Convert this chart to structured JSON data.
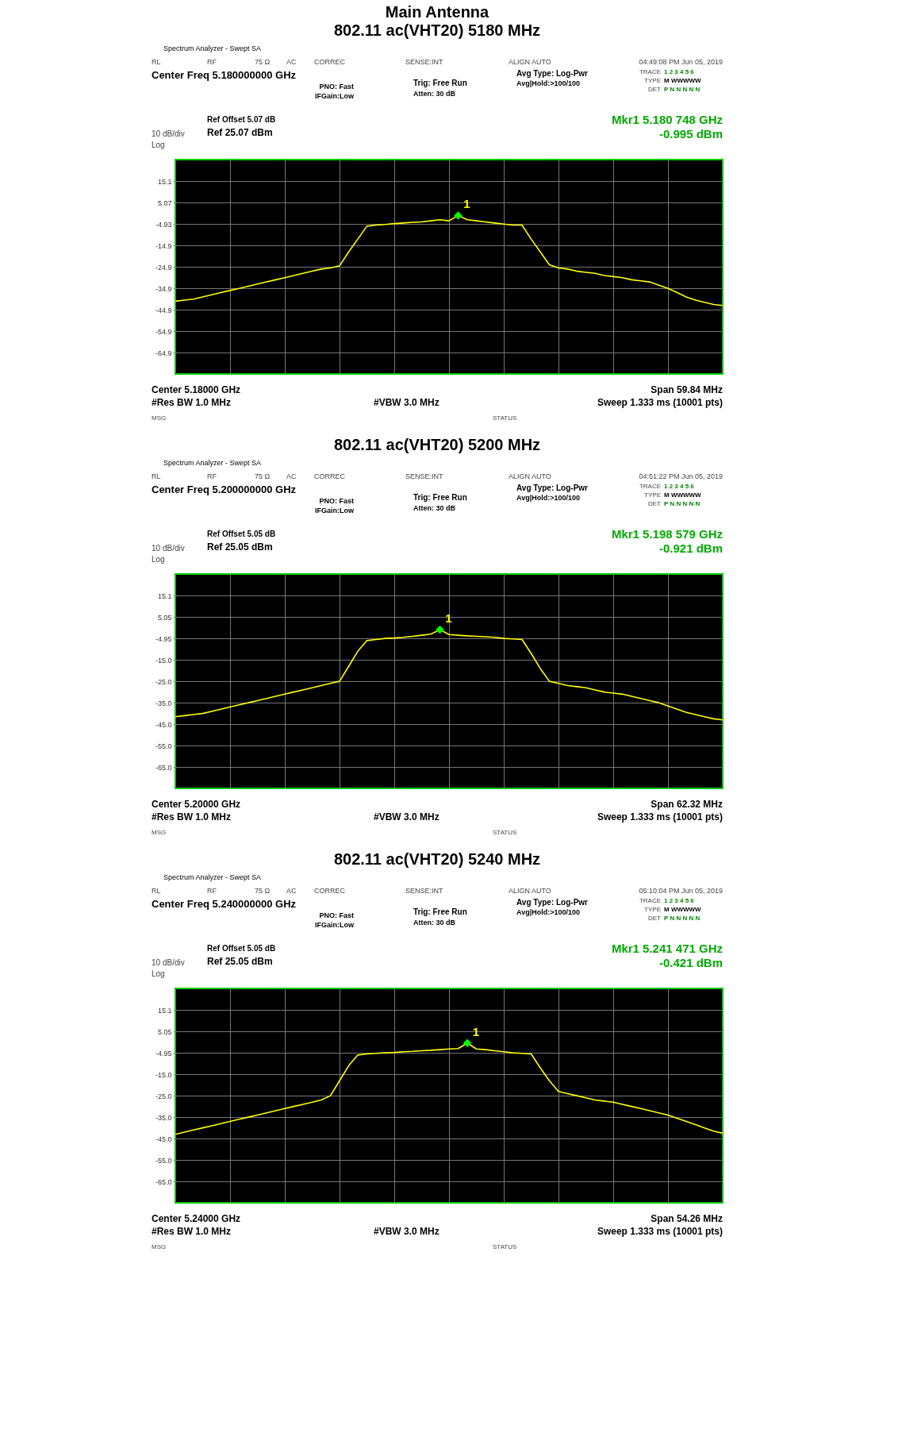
{
  "chart_data": [
    {
      "type": "line",
      "title": "Main Antenna",
      "subtitle": "802.11 ac(VHT20) 5180 MHz",
      "categories": [
        null,
        null,
        null,
        null,
        null,
        null,
        null,
        null,
        null,
        null,
        null,
        null,
        null,
        null,
        null,
        null,
        null,
        null,
        null,
        null,
        null,
        null,
        null,
        null,
        null,
        null,
        null,
        null,
        null,
        null,
        null,
        null,
        null,
        null,
        null,
        null,
        null,
        null,
        null,
        null,
        null,
        null,
        null,
        null,
        null,
        null,
        null,
        null,
        null,
        null,
        null,
        null,
        null,
        null,
        null,
        null,
        null,
        null,
        null,
        null,
        null
      ],
      "ylim": [
        -74.93,
        25.07
      ],
      "yticks": [
        {
          "value": 15.07,
          "label": "15.1"
        },
        {
          "value": 5.07,
          "label": "5.07"
        },
        {
          "value": -4.93,
          "label": "-4.93"
        },
        {
          "value": -14.93,
          "label": "-14.9"
        },
        {
          "value": -24.93,
          "label": "-24.9"
        },
        {
          "value": -34.93,
          "label": "-34.9"
        },
        {
          "value": -44.93,
          "label": "-44.9"
        },
        {
          "value": -54.93,
          "label": "-54.9"
        },
        {
          "value": -64.93,
          "label": "-64.9"
        }
      ],
      "grid": true,
      "legend": false,
      "tick_labels": "y",
      "series": [
        {
          "color": "#ffff00",
          "values": [
            -41,
            -40.5,
            -40,
            -39,
            -38,
            -37,
            -36,
            -35,
            -34,
            -33,
            -32,
            -31,
            -30,
            -29,
            -28,
            -27,
            -26,
            -25.5,
            -24.5,
            -18,
            -12,
            -6,
            -5.5,
            -5.2,
            -4.8,
            -4.5,
            -4.2,
            -4,
            -3.5,
            -3,
            -3.5,
            -0.995,
            -3,
            -3.5,
            -4,
            -4.5,
            -5,
            -5.5,
            -5.5,
            -12,
            -18,
            -24,
            -25.5,
            -26,
            -27,
            -27.5,
            -28,
            -29,
            -29.5,
            -30,
            -31,
            -31.5,
            -32,
            -33.5,
            -35,
            -37,
            -39,
            -40.5,
            -41.5,
            -42.5,
            -43
          ]
        },
        {
          "type": "scatter",
          "name": "1",
          "marker": "diamond",
          "color": "#00ff00",
          "values": [
            null,
            null,
            null,
            null,
            null,
            null,
            null,
            null,
            null,
            null,
            null,
            null,
            null,
            null,
            null,
            null,
            null,
            null,
            null,
            null,
            null,
            null,
            null,
            null,
            null,
            null,
            null,
            null,
            null,
            null,
            null,
            -0.995,
            null,
            null,
            null,
            null,
            null,
            null,
            null,
            null,
            null,
            null,
            null,
            null,
            null,
            null,
            null,
            null,
            null,
            null,
            null,
            null,
            null,
            null,
            null,
            null,
            null,
            null,
            null,
            null,
            null
          ]
        }
      ],
      "annotations": [
        "RL",
        "RF",
        "75 Ω",
        "AC",
        "CORREC",
        "SENSE:INT",
        "ALIGN AUTO",
        "04:49:08 PM Jun 05, 2019",
        "Center Freq 5.180000000 GHz",
        "PNO: Fast",
        "IFGain:Low",
        "Trig: Free Run",
        "Atten: 30 dB",
        "Avg Type: Log-Pwr",
        "Avg|Hold:>100/100",
        "TRACE",
        "1 2 3 4 5 6",
        "TYPE",
        "M WWWWW",
        "DET",
        "P N N N N N",
        "Ref Offset 5.07 dB",
        "10 dB/div",
        "Log",
        "Ref 25.07 dBm",
        "Mkr1 5.180 748 GHz",
        "-0.995 dBm",
        "Center 5.18000 GHz",
        "#Res BW 1.0 MHz",
        "#VBW 3.0 MHz",
        "Span 59.84 MHz",
        "Sweep  1.333 ms (10001 pts)",
        "MSG",
        "STATUS",
        "Spectrum Analyzer - Swept SA"
      ]
    },
    {
      "type": "line",
      "title": "802.11 ac(VHT20) 5200 MHz",
      "categories": [
        null,
        null,
        null,
        null,
        null,
        null,
        null,
        null,
        null,
        null,
        null,
        null,
        null,
        null,
        null,
        null,
        null,
        null,
        null,
        null,
        null,
        null,
        null,
        null,
        null,
        null,
        null,
        null,
        null,
        null,
        null,
        null,
        null,
        null,
        null,
        null,
        null,
        null,
        null,
        null,
        null,
        null,
        null,
        null,
        null,
        null,
        null,
        null,
        null,
        null,
        null,
        null,
        null,
        null,
        null,
        null,
        null,
        null,
        null,
        null,
        null
      ],
      "ylim": [
        -74.95,
        25.05
      ],
      "yticks": [
        {
          "value": 15.05,
          "label": "15.1"
        },
        {
          "value": 5.05,
          "label": "5.05"
        },
        {
          "value": -4.95,
          "label": "-4.95"
        },
        {
          "value": -14.95,
          "label": "-15.0"
        },
        {
          "value": -24.95,
          "label": "-25.0"
        },
        {
          "value": -34.95,
          "label": "-35.0"
        },
        {
          "value": -44.95,
          "label": "-45.0"
        },
        {
          "value": -54.95,
          "label": "-55.0"
        },
        {
          "value": -64.95,
          "label": "-65.0"
        }
      ],
      "grid": true,
      "legend": false,
      "tick_labels": "y",
      "series": [
        {
          "color": "#ffff00",
          "values": [
            -41.5,
            -41,
            -40.5,
            -40,
            -39,
            -38,
            -37,
            -36,
            -35,
            -34,
            -33,
            -32,
            -31,
            -30,
            -29,
            -28,
            -27,
            -26,
            -25,
            -18,
            -11,
            -6,
            -5.5,
            -5,
            -4.8,
            -4.5,
            -4,
            -3.5,
            -3,
            -0.921,
            -3.2,
            -3.5,
            -3.8,
            -4,
            -4.2,
            -4.5,
            -5,
            -5.2,
            -5.5,
            -12,
            -19,
            -25,
            -26,
            -27,
            -27.5,
            -28,
            -29,
            -30,
            -30.5,
            -31,
            -32,
            -33,
            -34,
            -35,
            -36.5,
            -38,
            -39.5,
            -40.5,
            -41.5,
            -42.5,
            -43
          ]
        },
        {
          "type": "scatter",
          "name": "1",
          "marker": "diamond",
          "color": "#00ff00",
          "values": [
            null,
            null,
            null,
            null,
            null,
            null,
            null,
            null,
            null,
            null,
            null,
            null,
            null,
            null,
            null,
            null,
            null,
            null,
            null,
            null,
            null,
            null,
            null,
            null,
            null,
            null,
            null,
            null,
            null,
            -0.921,
            null,
            null,
            null,
            null,
            null,
            null,
            null,
            null,
            null,
            null,
            null,
            null,
            null,
            null,
            null,
            null,
            null,
            null,
            null,
            null,
            null,
            null,
            null,
            null,
            null,
            null,
            null,
            null,
            null,
            null,
            null
          ]
        }
      ],
      "annotations": [
        "RL",
        "RF",
        "75 Ω",
        "AC",
        "CORREC",
        "SENSE:INT",
        "ALIGN AUTO",
        "04:51:22 PM Jun 05, 2019",
        "Center Freq 5.200000000 GHz",
        "PNO: Fast",
        "IFGain:Low",
        "Trig: Free Run",
        "Atten: 30 dB",
        "Avg Type: Log-Pwr",
        "Avg|Hold:>100/100",
        "TRACE",
        "1 2 3 4 5 6",
        "TYPE",
        "M WWWWW",
        "DET",
        "P N N N N N",
        "Ref Offset 5.05 dB",
        "10 dB/div",
        "Log",
        "Ref 25.05 dBm",
        "Mkr1 5.198 579 GHz",
        "-0.921 dBm",
        "Center 5.20000 GHz",
        "#Res BW 1.0 MHz",
        "#VBW 3.0 MHz",
        "Span 62.32 MHz",
        "Sweep  1.333 ms (10001 pts)",
        "MSG",
        "STATUS",
        "Spectrum Analyzer - Swept SA"
      ]
    },
    {
      "type": "line",
      "title": "802.11 ac(VHT20) 5240 MHz",
      "categories": [
        null,
        null,
        null,
        null,
        null,
        null,
        null,
        null,
        null,
        null,
        null,
        null,
        null,
        null,
        null,
        null,
        null,
        null,
        null,
        null,
        null,
        null,
        null,
        null,
        null,
        null,
        null,
        null,
        null,
        null,
        null,
        null,
        null,
        null,
        null,
        null,
        null,
        null,
        null,
        null,
        null,
        null,
        null,
        null,
        null,
        null,
        null,
        null,
        null,
        null,
        null,
        null,
        null,
        null,
        null,
        null,
        null,
        null,
        null,
        null,
        null
      ],
      "ylim": [
        -74.95,
        25.05
      ],
      "yticks": [
        {
          "value": 15.05,
          "label": "15.1"
        },
        {
          "value": 5.05,
          "label": "5.05"
        },
        {
          "value": -4.95,
          "label": "-4.95"
        },
        {
          "value": -14.95,
          "label": "-15.0"
        },
        {
          "value": -24.95,
          "label": "-25.0"
        },
        {
          "value": -34.95,
          "label": "-35.0"
        },
        {
          "value": -44.95,
          "label": "-45.0"
        },
        {
          "value": -54.95,
          "label": "-55.0"
        },
        {
          "value": -64.95,
          "label": "-65.0"
        }
      ],
      "grid": true,
      "legend": false,
      "tick_labels": "y",
      "series": [
        {
          "color": "#ffff00",
          "values": [
            -43,
            -42,
            -41,
            -40,
            -39,
            -38,
            -37,
            -36,
            -35,
            -34,
            -33,
            -32,
            -31,
            -30,
            -29,
            -28,
            -27,
            -25,
            -18,
            -11,
            -6,
            -5.5,
            -5.2,
            -5,
            -4.8,
            -4.5,
            -4.3,
            -4,
            -3.8,
            -3.5,
            -3.2,
            -3,
            -0.421,
            -3.2,
            -3.5,
            -4,
            -4.5,
            -5,
            -5.2,
            -5.5,
            -12,
            -18,
            -23,
            -24,
            -25,
            -26,
            -27,
            -27.5,
            -28,
            -29,
            -30,
            -31,
            -32,
            -33,
            -34,
            -35.5,
            -37,
            -38.5,
            -40,
            -41.5,
            -42.5
          ]
        },
        {
          "type": "scatter",
          "name": "1",
          "marker": "diamond",
          "color": "#00ff00",
          "values": [
            null,
            null,
            null,
            null,
            null,
            null,
            null,
            null,
            null,
            null,
            null,
            null,
            null,
            null,
            null,
            null,
            null,
            null,
            null,
            null,
            null,
            null,
            null,
            null,
            null,
            null,
            null,
            null,
            null,
            null,
            null,
            null,
            -0.421,
            null,
            null,
            null,
            null,
            null,
            null,
            null,
            null,
            null,
            null,
            null,
            null,
            null,
            null,
            null,
            null,
            null,
            null,
            null,
            null,
            null,
            null,
            null,
            null,
            null,
            null,
            null,
            null
          ]
        }
      ],
      "annotations": [
        "RL",
        "RF",
        "75 Ω",
        "AC",
        "CORREC",
        "SENSE:INT",
        "ALIGN AUTO",
        "05:10:04 PM Jun 05, 2019",
        "Center Freq 5.240000000 GHz",
        "PNO: Fast",
        "IFGain:Low",
        "Trig: Free Run",
        "Atten: 30 dB",
        "Avg Type: Log-Pwr",
        "Avg|Hold:>100/100",
        "TRACE",
        "1 2 3 4 5 6",
        "TYPE",
        "M WWWWW",
        "DET",
        "P N N N N N",
        "Ref Offset 5.05 dB",
        "10 dB/div",
        "Log",
        "Ref 25.05 dBm",
        "Mkr1 5.241 471 GHz",
        "-0.421 dBm",
        "Center 5.24000 GHz",
        "#Res BW 1.0 MHz",
        "#VBW 3.0 MHz",
        "Span 54.26 MHz",
        "Sweep  1.333 ms (10001 pts)",
        "MSG",
        "STATUS",
        "Spectrum Analyzer - Swept SA"
      ]
    }
  ]
}
